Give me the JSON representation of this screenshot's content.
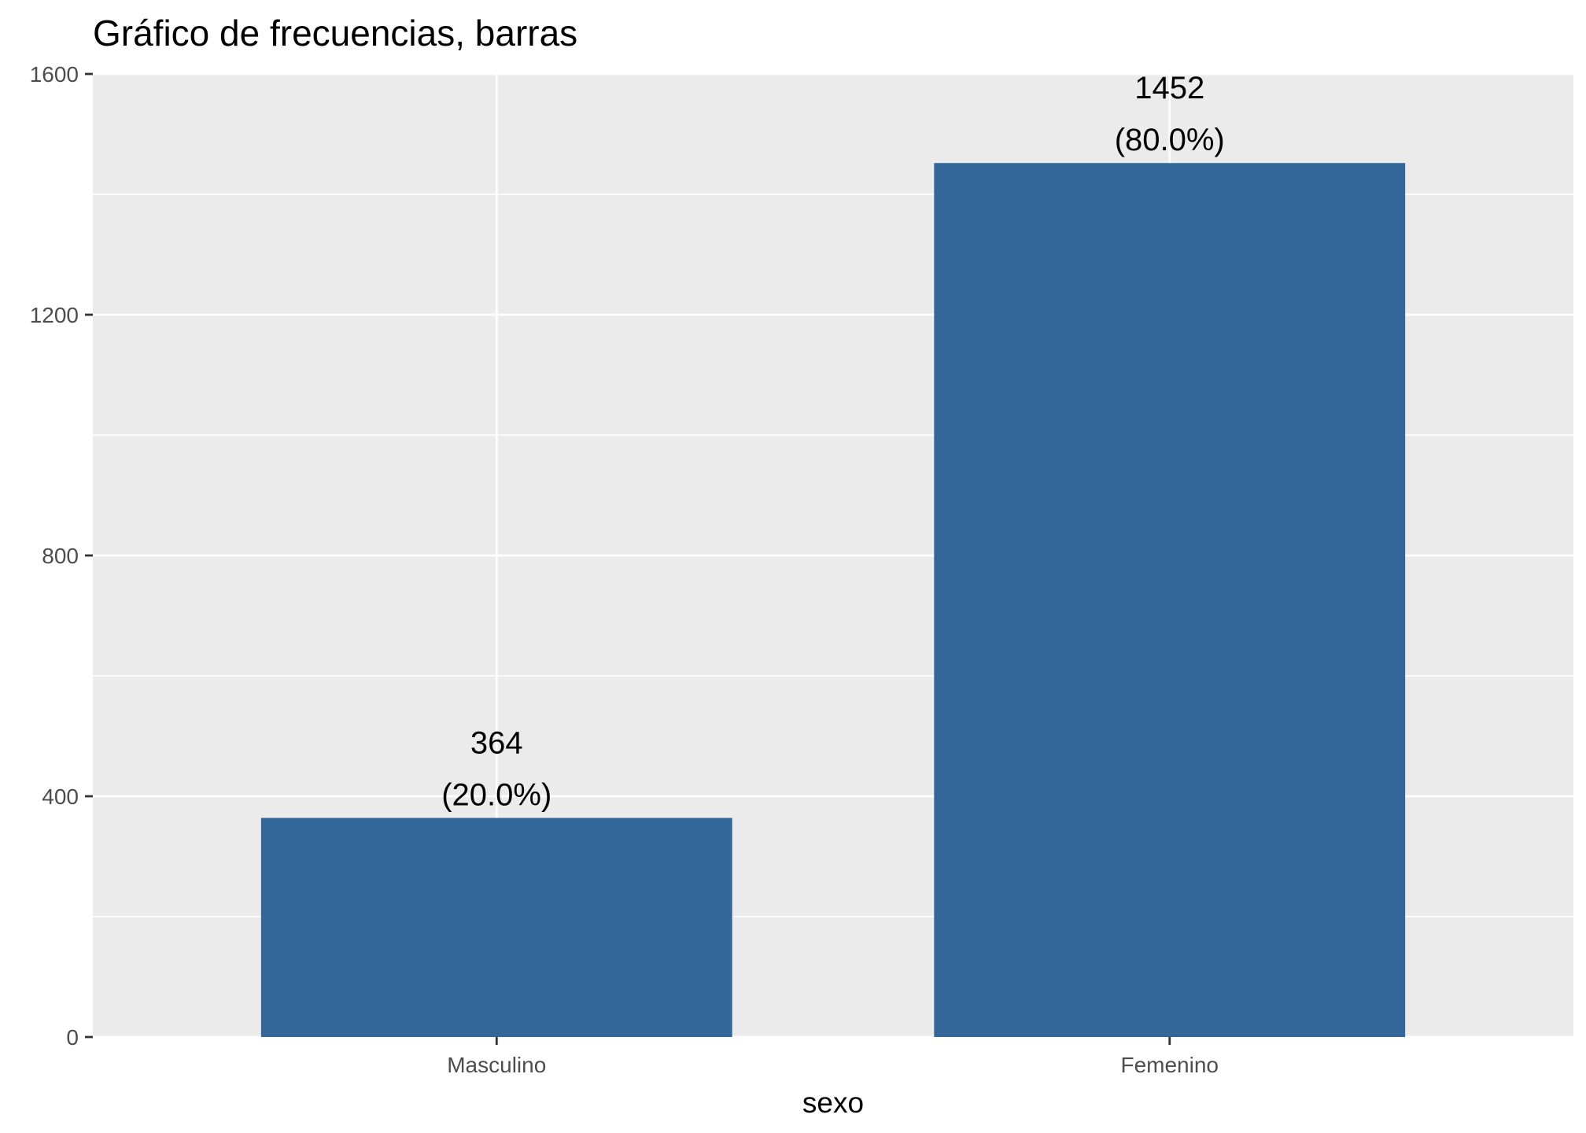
{
  "chart_data": {
    "type": "bar",
    "title": "Gráfico de frecuencias, barras",
    "xlabel": "sexo",
    "ylabel": "",
    "categories": [
      "Masculino",
      "Femenino"
    ],
    "values": [
      364,
      1452
    ],
    "labels": [
      {
        "count": "364",
        "percent": "(20.0%)"
      },
      {
        "count": "1452",
        "percent": "(80.0%)"
      }
    ],
    "ylim": [
      0,
      1600
    ],
    "yticks": [
      0,
      400,
      800,
      1200,
      1600
    ],
    "grid": true,
    "bar_color": "#336699",
    "panel_background": "#EBEBEB",
    "grid_color": "#FFFFFF"
  }
}
